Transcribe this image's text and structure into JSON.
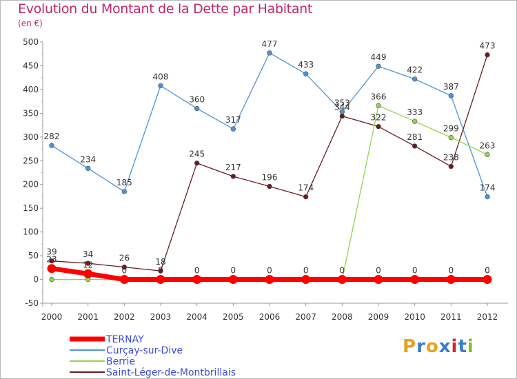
{
  "title": "Evolution du Montant de la Dette par Habitant",
  "unit_label": "(en €)",
  "logo_text": "Proxiti",
  "logo_colors": [
    "#e8a21a",
    "#3d7cc9",
    "#e8a21a",
    "#3d7cc9",
    "#d4262c",
    "#3d7cc9",
    "#8bbd2a"
  ],
  "chart_data": {
    "type": "line",
    "title": "Evolution du Montant de la Dette par Habitant",
    "ylabel": "(en €)",
    "xlabel": "",
    "x": [
      "2000",
      "2001",
      "2002",
      "2003",
      "2004",
      "2005",
      "2006",
      "2007",
      "2008",
      "2009",
      "2010",
      "2011",
      "2012"
    ],
    "ylim": [
      -50,
      500
    ],
    "yticks": [
      -50,
      0,
      50,
      100,
      150,
      200,
      250,
      300,
      350,
      400,
      450,
      500
    ],
    "grid": false,
    "legend_position": "bottom-left",
    "series": [
      {
        "name": "TERNAY",
        "color": "#ff0000",
        "emphasis": true,
        "values": [
          23,
          12,
          0,
          0,
          0,
          0,
          0,
          0,
          0,
          0,
          0,
          0,
          0
        ],
        "labels": [
          "23",
          "12",
          "0",
          "0",
          "0",
          "0",
          "0",
          "0",
          "0",
          "0",
          "0",
          "0",
          "0"
        ]
      },
      {
        "name": "Curçay-sur-Dive",
        "color": "#4d93d6",
        "values": [
          282,
          234,
          185,
          408,
          360,
          317,
          477,
          433,
          353,
          449,
          422,
          387,
          174
        ],
        "labels": [
          "282",
          "234",
          "185",
          "408",
          "360",
          "317",
          "477",
          "433",
          "353",
          "449",
          "422",
          "387",
          "174"
        ]
      },
      {
        "name": "Berrie",
        "color": "#8ed64a",
        "values": [
          0,
          0,
          0,
          0,
          0,
          0,
          0,
          0,
          0,
          366,
          333,
          299,
          263
        ],
        "labels": [
          "",
          "",
          "",
          "",
          "",
          "",
          "",
          "",
          "",
          "366",
          "333",
          "299",
          "263"
        ]
      },
      {
        "name": "Saint-Léger-de-Montbrillais",
        "color": "#6b1a1e",
        "values": [
          39,
          34,
          26,
          18,
          245,
          217,
          196,
          174,
          344,
          322,
          281,
          238,
          473
        ],
        "labels": [
          "39",
          "34",
          "26",
          "18",
          "245",
          "217",
          "196",
          "174",
          "344",
          "322",
          "281",
          "238",
          "473"
        ]
      }
    ]
  }
}
